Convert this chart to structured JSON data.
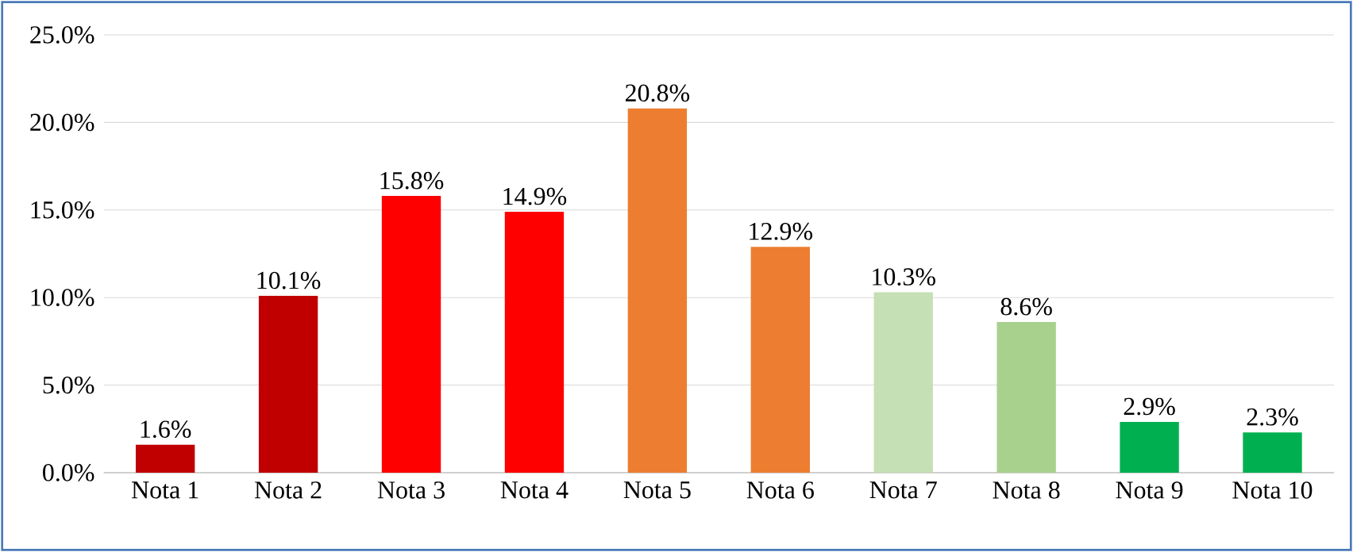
{
  "chart_data": {
    "type": "bar",
    "categories": [
      "Nota 1",
      "Nota 2",
      "Nota 3",
      "Nota 4",
      "Nota 5",
      "Nota 6",
      "Nota 7",
      "Nota 8",
      "Nota 9",
      "Nota 10"
    ],
    "values": [
      1.6,
      10.1,
      15.8,
      14.9,
      20.8,
      12.9,
      10.3,
      8.6,
      2.9,
      2.3
    ],
    "colors": [
      "#c00000",
      "#c00000",
      "#ff0000",
      "#ff0000",
      "#ed7d31",
      "#ed7d31",
      "#c5e0b4",
      "#a9d18e",
      "#00b050",
      "#00b050"
    ],
    "value_labels": [
      "1.6%",
      "10.1%",
      "15.8%",
      "14.9%",
      "20.8%",
      "12.9%",
      "10.3%",
      "8.6%",
      "2.9%",
      "2.3%"
    ],
    "ylim": [
      0,
      25
    ],
    "yticks": [
      {
        "value": 0,
        "label": "0.0%"
      },
      {
        "value": 5,
        "label": "5.0%"
      },
      {
        "value": 10,
        "label": "10.0%"
      },
      {
        "value": 15,
        "label": "15.0%"
      },
      {
        "value": 20,
        "label": "20.0%"
      },
      {
        "value": 25,
        "label": "25.0%"
      }
    ],
    "grid": "y"
  }
}
